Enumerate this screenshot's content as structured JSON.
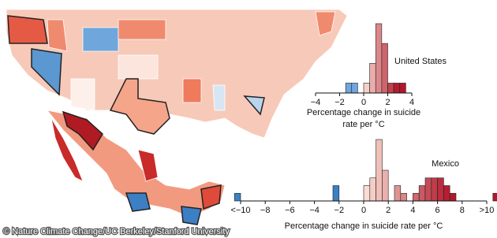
{
  "credit": "© Nature Climate Change/UC Berkeley/Stanford University",
  "chart_data": [
    {
      "type": "histogram",
      "title": "United States",
      "xlabel": [
        "Percentage change in suicide",
        "rate per °C"
      ],
      "bins": [
        -1.5,
        -1,
        -0.5,
        0,
        0.5,
        1,
        1.5,
        2,
        2.5,
        3,
        3.5
      ],
      "counts": [
        1,
        1,
        0,
        1,
        3,
        7,
        5,
        1,
        1,
        1
      ],
      "xlim": [
        -4,
        4
      ],
      "xticks": [
        {
          "value": -4,
          "label": "−4"
        },
        {
          "value": -2,
          "label": "−2"
        },
        0,
        2,
        4
      ],
      "colors": {
        "negative": "#6fa6dc",
        "low": "#fde3d8",
        "high": "#b2182b",
        "edge": "#222222"
      }
    },
    {
      "type": "histogram",
      "title": "Mexico",
      "xlabel": [
        "Percentage change in suicide rate per °C"
      ],
      "bins": [
        -10.5,
        -10,
        -9.5,
        -9,
        -8.5,
        -8,
        -7.5,
        -7,
        -6.5,
        -6,
        -5.5,
        -5,
        -4.5,
        -4,
        -3.5,
        -3,
        -2.5,
        -2,
        -1.5,
        -1,
        -0.5,
        0,
        0.5,
        1,
        1.5,
        2,
        2.5,
        3,
        3.5,
        4,
        4.5,
        5,
        5.5,
        6,
        6.5,
        7,
        7.5,
        8,
        8.5,
        9,
        9.5,
        10,
        10.5,
        11
      ],
      "counts": [
        1,
        0,
        0,
        0,
        0,
        0,
        0,
        0,
        0,
        0,
        0,
        0,
        0,
        0,
        0,
        0,
        2,
        0,
        0,
        0,
        0,
        2,
        3,
        8,
        4,
        0,
        2,
        1,
        0,
        1,
        2,
        3,
        3,
        3,
        2,
        1,
        0,
        0,
        0,
        0,
        0,
        0,
        1
      ],
      "xlim": [
        -10,
        10
      ],
      "xticks": [
        {
          "value": -10,
          "label": "<−10"
        },
        {
          "value": -8,
          "label": "−8"
        },
        {
          "value": -6,
          "label": "−6"
        },
        {
          "value": -4,
          "label": "−4"
        },
        {
          "value": -2,
          "label": "−2"
        },
        0,
        2,
        4,
        6,
        8,
        {
          "value": 10,
          "label": ">10"
        }
      ],
      "colors": {
        "negative": "#3d7fc4",
        "low": "#fde3d8",
        "high": "#b2182b",
        "edge": "#222222"
      }
    }
  ]
}
